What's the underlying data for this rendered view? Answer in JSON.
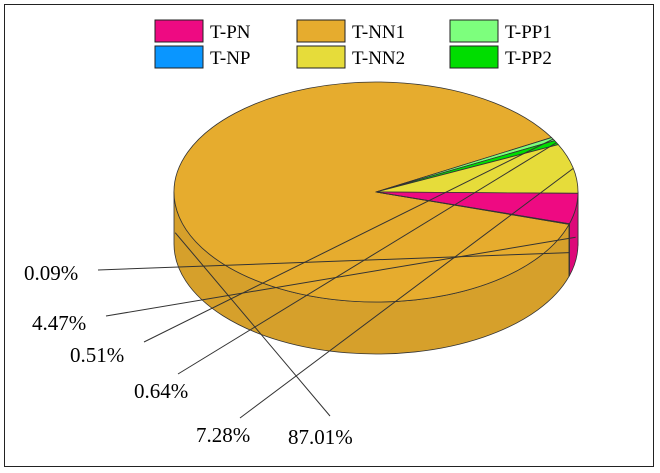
{
  "chart_data": {
    "type": "pie",
    "title": "",
    "slices": [
      {
        "label": "T-NN1",
        "value": 87.01,
        "value_label": "87.01%",
        "color": "#E6AC2E"
      },
      {
        "label": "T-PP1",
        "value": 0.51,
        "value_label": "0.51%",
        "color": "#7DFF7D"
      },
      {
        "label": "T-PP2",
        "value": 0.64,
        "value_label": "0.64%",
        "color": "#00DD00"
      },
      {
        "label": "T-NN2",
        "value": 7.28,
        "value_label": "7.28%",
        "color": "#E6DC3A"
      },
      {
        "label": "T-PN",
        "value": 4.47,
        "value_label": "4.47%",
        "color": "#EE0A82"
      },
      {
        "label": "T-NP",
        "value": 0.09,
        "value_label": "0.09%",
        "color": "#0A96FF"
      }
    ],
    "legend": {
      "placement": "top",
      "entries": [
        {
          "label": "T-PN",
          "color": "#EE0A82"
        },
        {
          "label": "T-NN1",
          "color": "#E6AC2E"
        },
        {
          "label": "T-PP1",
          "color": "#7DFF7D"
        },
        {
          "label": "T-NP",
          "color": "#0A96FF"
        },
        {
          "label": "T-NN2",
          "color": "#E6DC3A"
        },
        {
          "label": "T-PP2",
          "color": "#00DD00"
        }
      ]
    },
    "style": "3d-pie"
  }
}
